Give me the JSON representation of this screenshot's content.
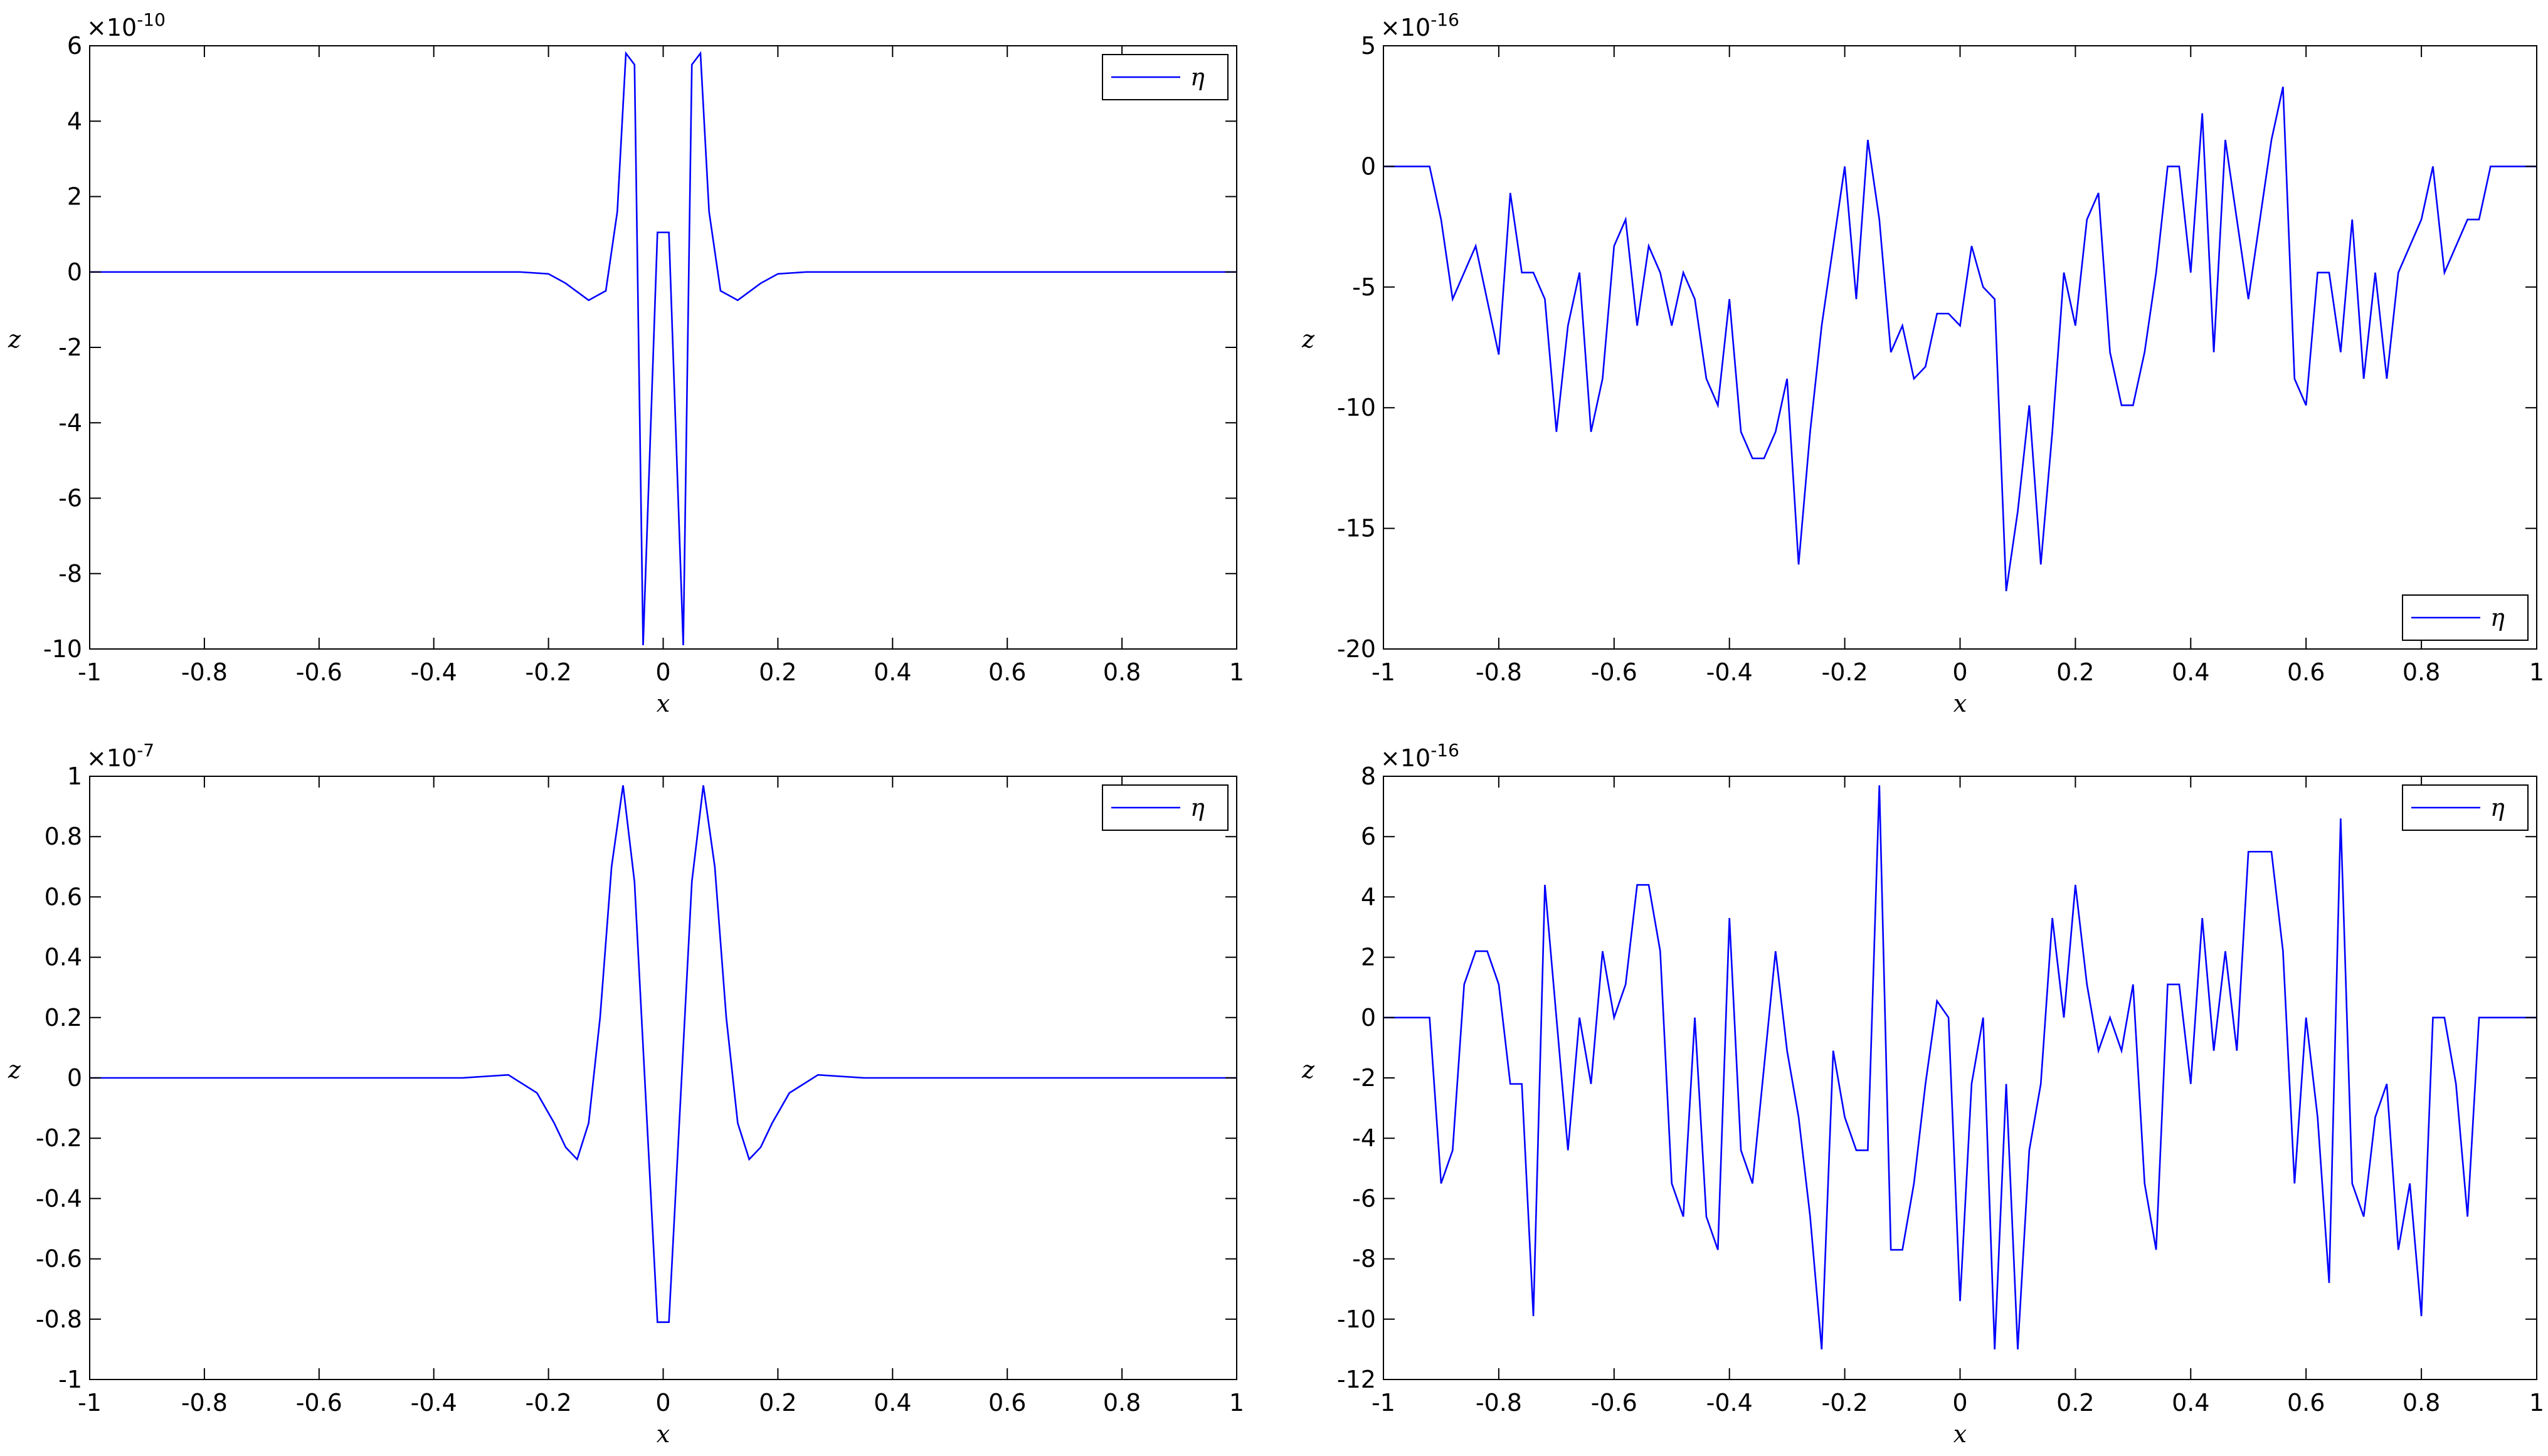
{
  "chart_data": [
    {
      "type": "line",
      "xlabel": "x",
      "ylabel": "z",
      "legend_loc": "upper right",
      "y_multiplier": {
        "base": "×10",
        "exponent": "-10"
      },
      "xlim": [
        -1,
        1
      ],
      "ylim": [
        -10,
        6
      ],
      "xticks": [
        -1,
        -0.8,
        -0.6,
        -0.4,
        -0.2,
        0,
        0.2,
        0.4,
        0.6,
        0.8,
        1
      ],
      "yticks": [
        -10,
        -8,
        -6,
        -4,
        -2,
        0,
        2,
        4,
        6
      ],
      "x": [
        -1,
        -0.5,
        -0.25,
        -0.2,
        -0.17,
        -0.13,
        -0.1,
        -0.08,
        -0.065,
        -0.05,
        -0.035,
        -0.01,
        0.01,
        0.035,
        0.05,
        0.065,
        0.08,
        0.1,
        0.13,
        0.17,
        0.2,
        0.25,
        0.5,
        1
      ],
      "series": [
        {
          "name": "η",
          "color": "#0000ff",
          "values": [
            0,
            0,
            0,
            -0.05,
            -0.3,
            -0.75,
            -0.5,
            1.6,
            5.8,
            5.5,
            -9.9,
            1.05,
            1.05,
            -9.9,
            5.5,
            5.8,
            1.6,
            -0.5,
            -0.75,
            -0.3,
            -0.05,
            0,
            0,
            0
          ]
        }
      ]
    },
    {
      "type": "line",
      "xlabel": "x",
      "ylabel": "z",
      "legend_loc": "lower right",
      "y_multiplier": {
        "base": "×10",
        "exponent": "-16"
      },
      "xlim": [
        -1,
        1
      ],
      "ylim": [
        -20,
        5
      ],
      "xticks": [
        -1,
        -0.8,
        -0.6,
        -0.4,
        -0.2,
        0,
        0.2,
        0.4,
        0.6,
        0.8,
        1
      ],
      "yticks": [
        -20,
        -15,
        -10,
        -5,
        0,
        5
      ],
      "x": [
        -1,
        -0.92,
        -0.9,
        -0.88,
        -0.84,
        -0.8,
        -0.78,
        -0.76,
        -0.74,
        -0.72,
        -0.7,
        -0.68,
        -0.66,
        -0.64,
        -0.62,
        -0.6,
        -0.58,
        -0.56,
        -0.54,
        -0.52,
        -0.5,
        -0.48,
        -0.46,
        -0.44,
        -0.42,
        -0.4,
        -0.38,
        -0.36,
        -0.34,
        -0.32,
        -0.3,
        -0.28,
        -0.26,
        -0.24,
        -0.22,
        -0.2,
        -0.18,
        -0.16,
        -0.14,
        -0.12,
        -0.1,
        -0.08,
        -0.06,
        -0.04,
        -0.02,
        0,
        0.02,
        0.04,
        0.06,
        0.08,
        0.1,
        0.12,
        0.14,
        0.16,
        0.18,
        0.2,
        0.22,
        0.24,
        0.26,
        0.28,
        0.3,
        0.32,
        0.34,
        0.36,
        0.38,
        0.4,
        0.42,
        0.44,
        0.46,
        0.48,
        0.5,
        0.52,
        0.54,
        0.56,
        0.58,
        0.6,
        0.62,
        0.64,
        0.66,
        0.68,
        0.7,
        0.72,
        0.74,
        0.76,
        0.8,
        0.82,
        0.84,
        0.88,
        0.9,
        0.92,
        1
      ],
      "series": [
        {
          "name": "η",
          "color": "#0000ff",
          "values": [
            0,
            0,
            -2.2,
            -5.5,
            -3.3,
            -7.8,
            -1.1,
            -4.4,
            -4.4,
            -5.5,
            -11,
            -6.6,
            -4.4,
            -11,
            -8.8,
            -3.3,
            -2.2,
            -6.6,
            -3.3,
            -4.4,
            -6.6,
            -4.4,
            -5.5,
            -8.8,
            -9.9,
            -5.5,
            -11,
            -12.1,
            -12.1,
            -11,
            -8.8,
            -16.5,
            -11,
            -6.6,
            -3.3,
            0,
            -5.5,
            1.1,
            -2.2,
            -7.7,
            -6.6,
            -8.8,
            -8.3,
            -6.1,
            -6.1,
            -6.6,
            -3.3,
            -5,
            -5.5,
            -17.6,
            -14.3,
            -9.9,
            -16.5,
            -11,
            -4.4,
            -6.6,
            -2.2,
            -1.1,
            -7.7,
            -9.9,
            -9.9,
            -7.7,
            -4.4,
            0,
            0,
            -4.4,
            2.2,
            -7.7,
            1.1,
            -2.2,
            -5.5,
            -2.2,
            1.1,
            3.3,
            -8.8,
            -9.9,
            -4.4,
            -4.4,
            -7.7,
            -2.2,
            -8.8,
            -4.4,
            -8.8,
            -4.4,
            -2.2,
            0,
            -4.4,
            -2.2,
            -2.2,
            0,
            0
          ]
        }
      ]
    },
    {
      "type": "line",
      "xlabel": "x",
      "ylabel": "z",
      "legend_loc": "upper right",
      "y_multiplier": {
        "base": "×10",
        "exponent": "-7"
      },
      "xlim": [
        -1,
        1
      ],
      "ylim": [
        -1,
        1
      ],
      "xticks": [
        -1,
        -0.8,
        -0.6,
        -0.4,
        -0.2,
        0,
        0.2,
        0.4,
        0.6,
        0.8,
        1
      ],
      "yticks": [
        -1,
        -0.8,
        -0.6,
        -0.4,
        -0.2,
        0,
        0.2,
        0.4,
        0.6,
        0.8,
        1
      ],
      "x": [
        -1,
        -0.35,
        -0.27,
        -0.22,
        -0.19,
        -0.17,
        -0.15,
        -0.13,
        -0.11,
        -0.09,
        -0.07,
        -0.05,
        -0.01,
        0.01,
        0.05,
        0.07,
        0.09,
        0.11,
        0.13,
        0.15,
        0.17,
        0.19,
        0.22,
        0.27,
        0.35,
        1
      ],
      "series": [
        {
          "name": "η",
          "color": "#0000ff",
          "values": [
            0,
            0,
            0.01,
            -0.05,
            -0.15,
            -0.23,
            -0.27,
            -0.15,
            0.2,
            0.7,
            0.97,
            0.65,
            -0.81,
            -0.81,
            0.65,
            0.97,
            0.7,
            0.2,
            -0.15,
            -0.27,
            -0.23,
            -0.15,
            -0.05,
            0.01,
            0,
            0
          ]
        }
      ]
    },
    {
      "type": "line",
      "xlabel": "x",
      "ylabel": "z",
      "legend_loc": "upper right",
      "y_multiplier": {
        "base": "×10",
        "exponent": "-16"
      },
      "xlim": [
        -1,
        1
      ],
      "ylim": [
        -12,
        8
      ],
      "xticks": [
        -1,
        -0.8,
        -0.6,
        -0.4,
        -0.2,
        0,
        0.2,
        0.4,
        0.6,
        0.8,
        1
      ],
      "yticks": [
        -12,
        -10,
        -8,
        -6,
        -4,
        -2,
        0,
        2,
        4,
        6,
        8
      ],
      "x": [
        -1,
        -0.92,
        -0.9,
        -0.88,
        -0.86,
        -0.84,
        -0.82,
        -0.8,
        -0.78,
        -0.76,
        -0.74,
        -0.72,
        -0.7,
        -0.68,
        -0.66,
        -0.64,
        -0.62,
        -0.6,
        -0.58,
        -0.56,
        -0.54,
        -0.52,
        -0.5,
        -0.48,
        -0.46,
        -0.44,
        -0.42,
        -0.4,
        -0.38,
        -0.36,
        -0.32,
        -0.3,
        -0.28,
        -0.26,
        -0.24,
        -0.22,
        -0.2,
        -0.18,
        -0.16,
        -0.14,
        -0.12,
        -0.1,
        -0.08,
        -0.06,
        -0.04,
        -0.02,
        0,
        0.02,
        0.04,
        0.06,
        0.08,
        0.1,
        0.12,
        0.14,
        0.16,
        0.18,
        0.2,
        0.22,
        0.24,
        0.26,
        0.28,
        0.3,
        0.32,
        0.34,
        0.36,
        0.38,
        0.4,
        0.42,
        0.44,
        0.46,
        0.48,
        0.5,
        0.52,
        0.54,
        0.56,
        0.58,
        0.6,
        0.62,
        0.64,
        0.66,
        0.68,
        0.7,
        0.72,
        0.74,
        0.76,
        0.78,
        0.8,
        0.82,
        0.84,
        0.86,
        0.88,
        0.9,
        0.92,
        1
      ],
      "series": [
        {
          "name": "η",
          "color": "#0000ff",
          "values": [
            0,
            0,
            -5.5,
            -4.4,
            1.1,
            2.2,
            2.2,
            1.1,
            -2.2,
            -2.2,
            -9.9,
            4.4,
            0,
            -4.4,
            0,
            -2.2,
            2.2,
            0,
            1.1,
            4.4,
            4.4,
            2.2,
            -5.5,
            -6.6,
            0,
            -6.6,
            -7.7,
            3.3,
            -4.4,
            -5.5,
            2.2,
            -1.1,
            -3.3,
            -6.6,
            -11,
            -1.1,
            -3.3,
            -4.4,
            -4.4,
            7.7,
            -7.7,
            -7.7,
            -5.5,
            -2.2,
            0.55,
            0,
            -9.4,
            -2.2,
            0,
            -11,
            -2.2,
            -11,
            -4.4,
            -2.2,
            3.3,
            0,
            4.4,
            1.1,
            -1.1,
            0,
            -1.1,
            1.1,
            -5.5,
            -7.7,
            1.1,
            1.1,
            -2.2,
            3.3,
            -1.1,
            2.2,
            -1.1,
            5.5,
            5.5,
            5.5,
            2.2,
            -5.5,
            0,
            -3.3,
            -8.8,
            6.6,
            -5.5,
            -6.6,
            -3.3,
            -2.2,
            -7.7,
            -5.5,
            -9.9,
            0,
            0,
            -2.2,
            -6.6,
            0,
            0,
            0
          ]
        }
      ]
    }
  ]
}
